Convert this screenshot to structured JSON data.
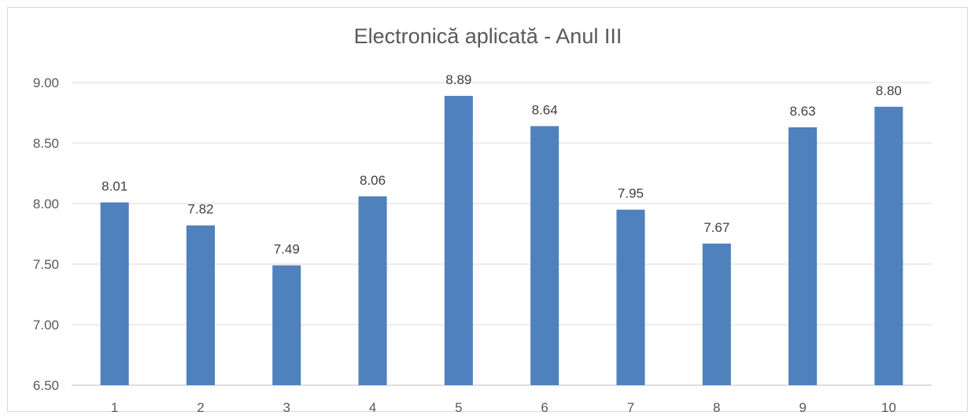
{
  "chart_data": {
    "type": "bar",
    "title": "Electronică aplicată - Anul III",
    "xlabel": "",
    "ylabel": "",
    "categories": [
      "1",
      "2",
      "3",
      "4",
      "5",
      "6",
      "7",
      "8",
      "9",
      "10"
    ],
    "values": [
      8.01,
      7.82,
      7.49,
      8.06,
      8.89,
      8.64,
      7.95,
      7.67,
      8.63,
      8.8
    ],
    "value_labels": [
      "8.01",
      "7.82",
      "7.49",
      "8.06",
      "8.89",
      "8.64",
      "7.95",
      "7.67",
      "8.63",
      "8.80"
    ],
    "ylim": [
      6.5,
      9.0
    ],
    "yticks": [
      6.5,
      7.0,
      7.5,
      8.0,
      8.5,
      9.0
    ],
    "ytick_labels": [
      "6.50",
      "7.00",
      "7.50",
      "8.00",
      "8.50",
      "9.00"
    ],
    "grid": true,
    "legend": "none",
    "bar_color": "#4f81bd"
  }
}
